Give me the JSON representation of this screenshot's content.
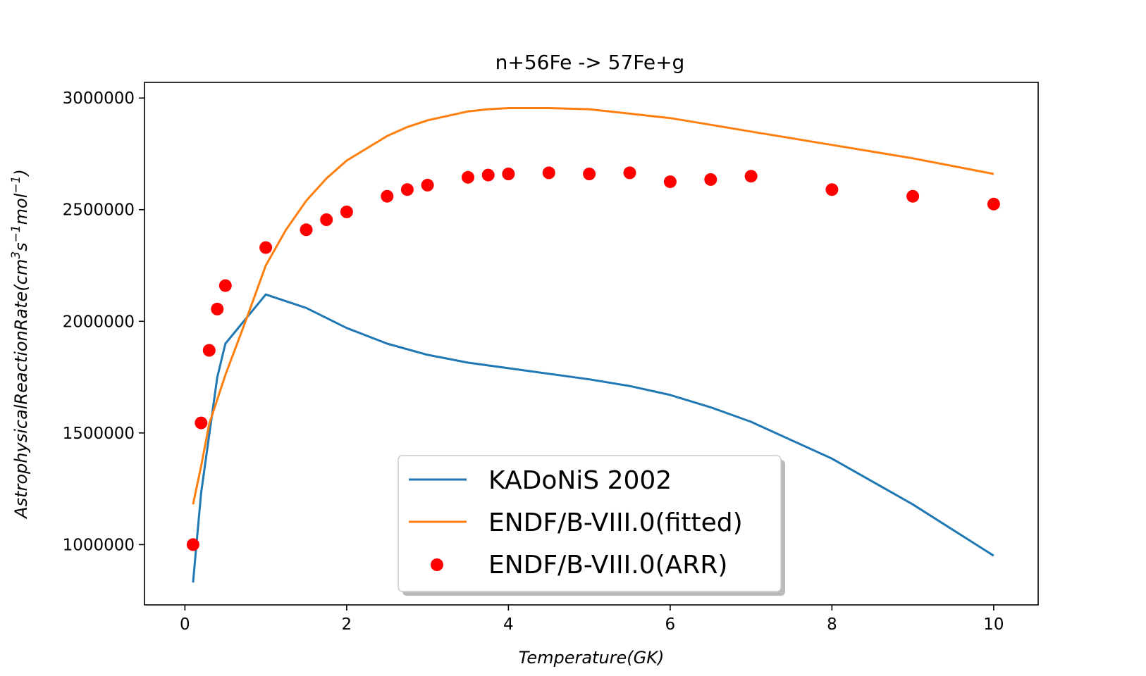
{
  "chart_data": {
    "type": "line",
    "title": "n+56Fe -> 57Fe+g",
    "xlabel": "Temperature(GK)",
    "ylabel_parts": {
      "base": "AstrophysicalReactionRate(cm",
      "sup1": "3",
      "mid1": "s",
      "sup2": "−1",
      "mid2": "mol",
      "sup3": "−1",
      "end": ")"
    },
    "xlim": [
      -0.5,
      10.55
    ],
    "ylim": [
      730000,
      3070000
    ],
    "xticks": [
      0,
      2,
      4,
      6,
      8,
      10
    ],
    "xtick_labels": [
      "0",
      "2",
      "4",
      "6",
      "8",
      "10"
    ],
    "yticks": [
      1000000,
      1500000,
      2000000,
      2500000,
      3000000
    ],
    "ytick_labels": [
      "1000000",
      "1500000",
      "2000000",
      "2500000",
      "3000000"
    ],
    "grid": false,
    "legend_position": "lower-center",
    "series": [
      {
        "name": "KADoNiS 2002",
        "kind": "line",
        "color": "#1f77b4",
        "x": [
          0.1,
          0.2,
          0.4,
          0.5,
          1.0,
          1.5,
          2.0,
          2.5,
          3.0,
          3.5,
          4.0,
          5.0,
          5.5,
          6.0,
          6.5,
          7.0,
          8.0,
          9.0,
          10.0
        ],
        "y": [
          830000,
          1230000,
          1750000,
          1900000,
          2120000,
          2060000,
          1970000,
          1900000,
          1850000,
          1815000,
          1790000,
          1740000,
          1710000,
          1670000,
          1615000,
          1550000,
          1385000,
          1180000,
          950000
        ]
      },
      {
        "name": "ENDF/B-VIII.0(fitted)",
        "kind": "line",
        "color": "#ff7f0e",
        "x": [
          0.1,
          0.2,
          0.3,
          0.5,
          0.75,
          1.0,
          1.25,
          1.5,
          1.75,
          2.0,
          2.5,
          2.75,
          3.0,
          3.5,
          3.75,
          4.0,
          4.5,
          5.0,
          5.5,
          6.0,
          6.5,
          7.0,
          8.0,
          9.0,
          10.0
        ],
        "y": [
          1180000,
          1350000,
          1540000,
          1760000,
          2000000,
          2250000,
          2410000,
          2540000,
          2640000,
          2720000,
          2830000,
          2870000,
          2900000,
          2940000,
          2950000,
          2955000,
          2955000,
          2950000,
          2930000,
          2910000,
          2880000,
          2850000,
          2790000,
          2730000,
          2660000
        ]
      },
      {
        "name": "ENDF/B-VIII.0(ARR)",
        "kind": "scatter",
        "color": "#ff0000",
        "x": [
          0.1,
          0.2,
          0.3,
          0.4,
          0.5,
          1.0,
          1.5,
          1.75,
          2.0,
          2.5,
          2.75,
          3.0,
          3.5,
          3.75,
          4.0,
          4.5,
          5.0,
          5.5,
          6.0,
          6.5,
          7.0,
          8.0,
          9.0,
          10.0
        ],
        "y": [
          1000000,
          1545000,
          1870000,
          2055000,
          2160000,
          2330000,
          2410000,
          2455000,
          2490000,
          2560000,
          2590000,
          2610000,
          2645000,
          2655000,
          2660000,
          2665000,
          2660000,
          2665000,
          2625000,
          2635000,
          2650000,
          2590000,
          2560000,
          2525000
        ]
      }
    ]
  }
}
